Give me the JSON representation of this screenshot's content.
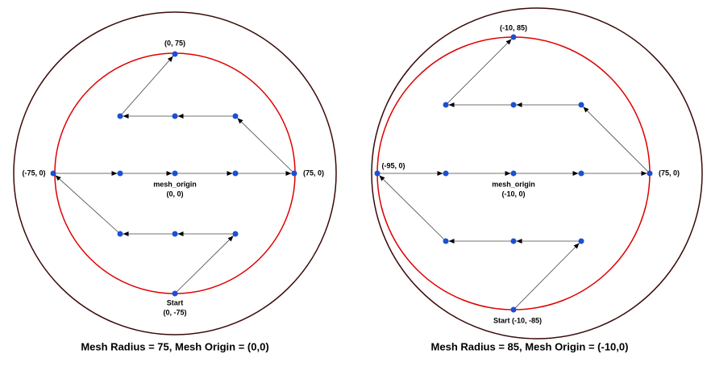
{
  "diagrams": [
    {
      "top_label": "(0, 75)",
      "left_label": "(-75, 0)",
      "right_label": "(75, 0)",
      "origin_name": "mesh_origin",
      "origin_label": "(0, 0)",
      "start_label": "Start",
      "start_coords": "(0, -75)",
      "caption": "Mesh Radius = 75, Mesh Origin = (0,0)"
    },
    {
      "top_label": "(-10, 85)",
      "left_label": "(-95, 0)",
      "right_label": "(75, 0)",
      "origin_name": "mesh_origin",
      "origin_label": "(-10, 0)",
      "start_label": "Start (-10, -85)",
      "caption": "Mesh Radius = 85, Mesh Origin = (-10,0)"
    }
  ]
}
